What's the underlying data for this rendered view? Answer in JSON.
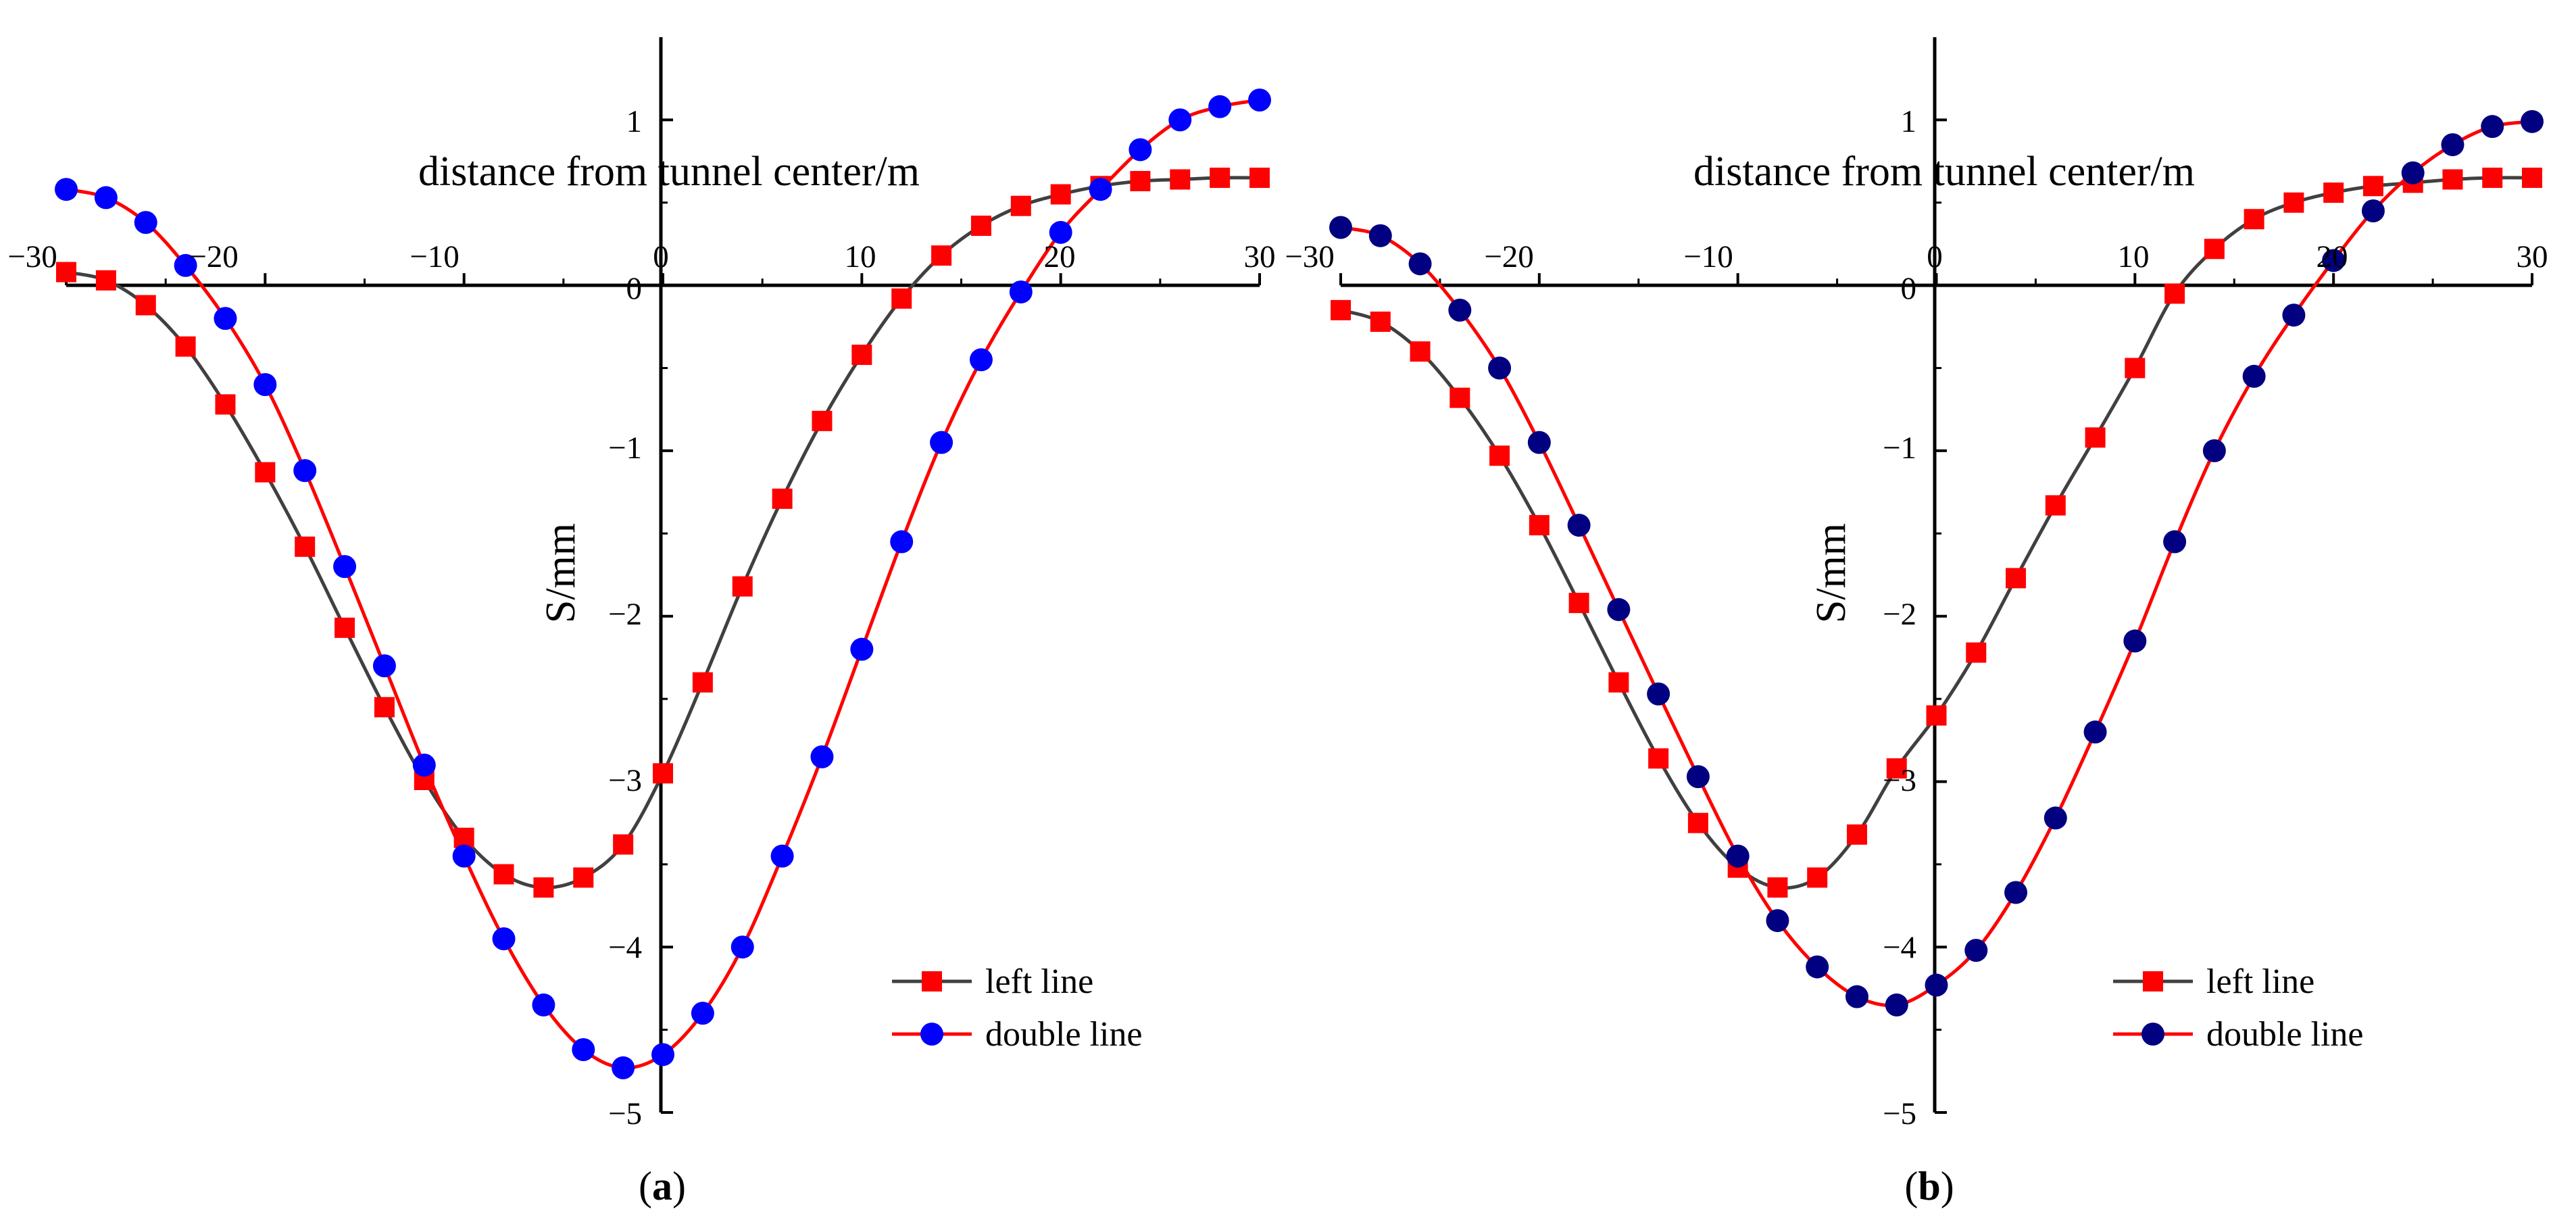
{
  "chart_data": [
    {
      "type": "line",
      "caption": {
        "open": "(",
        "letter": "a",
        "close": ")"
      },
      "xlabel": "distance from tunnel center/m",
      "ylabel": "S/mm",
      "xlim": [
        -30,
        30
      ],
      "ylim": [
        -5,
        1.5
      ],
      "xticks": [
        -30,
        -20,
        -10,
        0,
        10,
        20,
        30
      ],
      "xtick_labels": [
        "−30",
        "−20",
        "−10",
        "0",
        "10",
        "20",
        "30"
      ],
      "yticks": [
        -5,
        -4,
        -3,
        -2,
        -1,
        0,
        1
      ],
      "ytick_labels": [
        "−5",
        "−4",
        "−3",
        "−2",
        "−1",
        "0",
        "1"
      ],
      "legend": {
        "position": "bottom-right"
      },
      "series": [
        {
          "name": "left line",
          "marker": "square",
          "line_color": "#404040",
          "marker_color": "#ff0000",
          "x": [
            -30,
            -28,
            -26,
            -24,
            -22,
            -20,
            -18,
            -16,
            -14,
            -12,
            -10,
            -8,
            -6,
            -4,
            -2,
            0,
            2,
            4,
            6,
            8,
            10,
            12,
            14,
            16,
            18,
            20,
            22,
            24,
            26,
            28,
            30
          ],
          "y": [
            0.08,
            0.03,
            -0.12,
            -0.37,
            -0.72,
            -1.13,
            -1.58,
            -2.07,
            -2.55,
            -2.99,
            -3.34,
            -3.56,
            -3.64,
            -3.58,
            -3.38,
            -2.95,
            -2.4,
            -1.82,
            -1.29,
            -0.82,
            -0.42,
            -0.08,
            0.18,
            0.36,
            0.48,
            0.55,
            0.6,
            0.63,
            0.64,
            0.65,
            0.65
          ]
        },
        {
          "name": "double line",
          "marker": "circle",
          "line_color": "#ff0000",
          "marker_color": "#0000ff",
          "x": [
            -30,
            -28,
            -26,
            -24,
            -22,
            -20,
            -18,
            -16,
            -14,
            -12,
            -10,
            -8,
            -6,
            -4,
            -2,
            0,
            2,
            4,
            6,
            8,
            10,
            12,
            14,
            16,
            18,
            20,
            22,
            24,
            26,
            28,
            30
          ],
          "y": [
            0.58,
            0.53,
            0.38,
            0.12,
            -0.2,
            -0.6,
            -1.12,
            -1.7,
            -2.3,
            -2.9,
            -3.45,
            -3.95,
            -4.35,
            -4.62,
            -4.73,
            -4.65,
            -4.4,
            -4.0,
            -3.45,
            -2.85,
            -2.2,
            -1.55,
            -0.95,
            -0.45,
            -0.04,
            0.32,
            0.58,
            0.82,
            1.0,
            1.08,
            1.12
          ]
        }
      ]
    },
    {
      "type": "line",
      "caption": {
        "open": "(",
        "letter": "b",
        "close": ")"
      },
      "xlabel": "distance from tunnel center/m",
      "ylabel": "S/mm",
      "xlim": [
        -30,
        30
      ],
      "ylim": [
        -5,
        1.5
      ],
      "xticks": [
        -30,
        -20,
        -10,
        0,
        10,
        20,
        30
      ],
      "xtick_labels": [
        "−30",
        "−20",
        "−10",
        "0",
        "10",
        "20",
        "30"
      ],
      "yticks": [
        -5,
        -4,
        -3,
        -2,
        -1,
        0,
        1
      ],
      "ytick_labels": [
        "−5",
        "−4",
        "−3",
        "−2",
        "−1",
        "0",
        "1"
      ],
      "legend": {
        "position": "bottom-right"
      },
      "series": [
        {
          "name": "left line",
          "marker": "square",
          "line_color": "#404040",
          "marker_color": "#ff0000",
          "x": [
            -30,
            -28,
            -26,
            -24,
            -22,
            -20,
            -18,
            -16,
            -14,
            -12,
            -10,
            -8,
            -6,
            -4,
            -2,
            0,
            2,
            4,
            6,
            8,
            10,
            12,
            14,
            16,
            18,
            20,
            22,
            24,
            26,
            28,
            30
          ],
          "y": [
            -0.15,
            -0.22,
            -0.4,
            -0.68,
            -1.03,
            -1.45,
            -1.92,
            -2.4,
            -2.86,
            -3.25,
            -3.52,
            -3.64,
            -3.58,
            -3.32,
            -2.92,
            -2.6,
            -2.22,
            -1.77,
            -1.33,
            -0.92,
            -0.5,
            -0.05,
            0.22,
            0.4,
            0.5,
            0.56,
            0.6,
            0.62,
            0.64,
            0.65,
            0.65
          ]
        },
        {
          "name": "double line",
          "marker": "circle",
          "line_color": "#ff0000",
          "marker_color": "#000080",
          "x": [
            -30,
            -28,
            -26,
            -24,
            -22,
            -20,
            -18,
            -16,
            -14,
            -12,
            -10,
            -8,
            -6,
            -4,
            -2,
            0,
            2,
            4,
            6,
            8,
            10,
            12,
            14,
            16,
            18,
            20,
            22,
            24,
            26,
            28,
            30
          ],
          "y": [
            0.35,
            0.3,
            0.13,
            -0.15,
            -0.5,
            -0.95,
            -1.45,
            -1.96,
            -2.47,
            -2.97,
            -3.45,
            -3.84,
            -4.12,
            -4.3,
            -4.35,
            -4.23,
            -4.02,
            -3.67,
            -3.22,
            -2.7,
            -2.15,
            -1.55,
            -1.0,
            -0.55,
            -0.18,
            0.15,
            0.45,
            0.68,
            0.85,
            0.96,
            0.99
          ]
        }
      ]
    }
  ]
}
